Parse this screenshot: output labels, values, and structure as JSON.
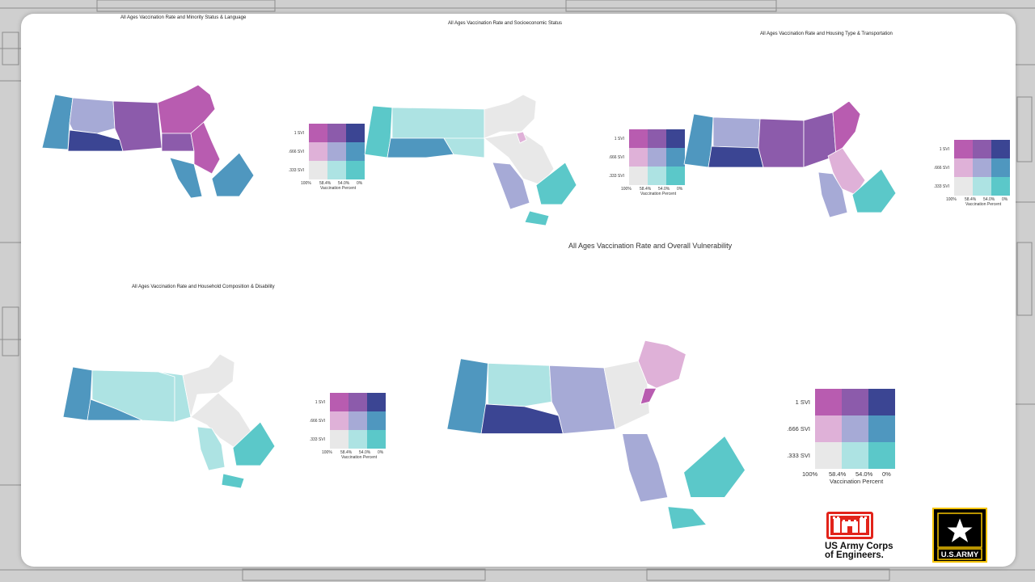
{
  "maps": [
    {
      "title": "All Ages Vaccination Rate and Minority Status & Language"
    },
    {
      "title": "All Ages Vaccination Rate and Socioeconomic Status"
    },
    {
      "title": "All Ages Vaccination Rate and Housing Type & Transportation"
    },
    {
      "title": "All Ages Vaccination Rate and Household Composition & Disability"
    },
    {
      "title": "All Ages Vaccination Rate and Overall Vulnerability"
    }
  ],
  "legend": {
    "y_labels": [
      "1 SVI",
      ".666 SVI",
      ".333 SVI"
    ],
    "x_labels": [
      "100%",
      "58.4%",
      "54.0%",
      "0%"
    ],
    "x_title": "Vaccination Percent",
    "grid_colors": [
      [
        "#b85cb0",
        "#8c5bab",
        "#3b4593"
      ],
      [
        "#dfb1d8",
        "#a6aad6",
        "#4f97bf"
      ],
      [
        "#e8e8e8",
        "#ade3e3",
        "#5bc8c9"
      ]
    ]
  },
  "region_colors": {
    "map1": [
      "#4f97bf",
      "#a6aad6",
      "#3b4593",
      "#8c5bab",
      "#b85cb0",
      "#8c5bab",
      "#b85cb0",
      "#4f97bf",
      "#4f97bf"
    ],
    "map2": [
      "#5bc8c9",
      "#ade3e3",
      "#4f97bf",
      "#ade3e3",
      "#e8e8e8",
      "#e8e8e8",
      "#dfb1d8",
      "#a6aad6",
      "#5bc8c9",
      "#5bc8c9"
    ],
    "map3": [
      "#4f97bf",
      "#a6aad6",
      "#3b4593",
      "#8c5bab",
      "#8c5bab",
      "#b85cb0",
      "#dfb1d8",
      "#a6aad6",
      "#5bc8c9"
    ],
    "map4": [
      "#4f97bf",
      "#ade3e3",
      "#4f97bf",
      "#ade3e3",
      "#e8e8e8",
      "#e8e8e8",
      "#ade3e3",
      "#5bc8c9",
      "#5bc8c9"
    ],
    "map5": [
      "#4f97bf",
      "#ade3e3",
      "#3b4593",
      "#a6aad6",
      "#e8e8e8",
      "#dfb1d8",
      "#b85cb0",
      "#a6aad6",
      "#5bc8c9",
      "#5bc8c9"
    ]
  },
  "logos": {
    "usace_line1": "US Army Corps",
    "usace_line2": "of Engineers.",
    "army_text": "U.S.ARMY"
  }
}
